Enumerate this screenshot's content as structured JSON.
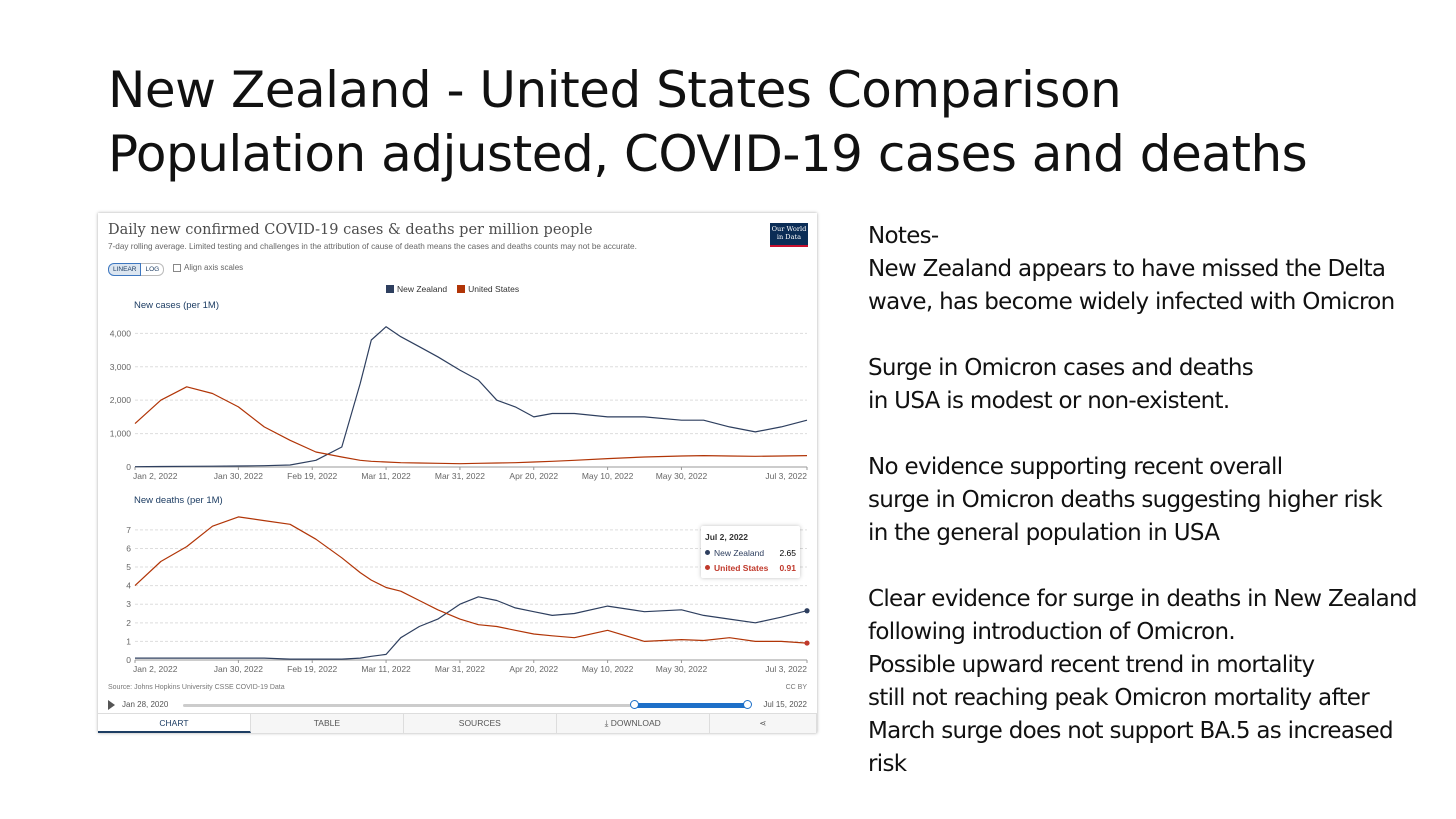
{
  "slide": {
    "title_line1": "New Zealand - United States Comparison",
    "title_line2": "Population adjusted, COVID-19 cases and deaths"
  },
  "panel": {
    "title": "Daily new confirmed COVID-19 cases & deaths per million people",
    "subtitle": "7-day rolling average. Limited testing and challenges in the attribution of cause of death means the cases and deaths counts may not be accurate.",
    "logo_line1": "Our World",
    "logo_line2": "in Data",
    "scale_linear": "LINEAR",
    "scale_log": "LOG",
    "align_label": "Align axis scales",
    "source": "Source: Johns Hopkins University CSSE COVID-19 Data",
    "license": "CC BY",
    "timeline_start": "Jan 28, 2020",
    "timeline_end": "Jul 15, 2022",
    "timeline_range_start_fraction": 0.8,
    "timeline_range_end_fraction": 1.0,
    "tabs": [
      "CHART",
      "TABLE",
      "SOURCES",
      "⤓ DOWNLOAD",
      "⋖"
    ],
    "tooltip": {
      "date": "Jul 2, 2022",
      "nz_label": "New Zealand",
      "nz_value": "2.65",
      "us_label": "United States",
      "us_value": "0.91"
    }
  },
  "colors": {
    "nz": "#2e3f5f",
    "us": "#b13507"
  },
  "chart_data": [
    {
      "type": "line",
      "title": "New cases (per 1M)",
      "x": [
        "2022-01-02",
        "2022-01-09",
        "2022-01-16",
        "2022-01-23",
        "2022-01-30",
        "2022-02-06",
        "2022-02-13",
        "2022-02-20",
        "2022-02-27",
        "2022-03-04",
        "2022-03-07",
        "2022-03-11",
        "2022-03-15",
        "2022-03-20",
        "2022-03-25",
        "2022-03-31",
        "2022-04-05",
        "2022-04-10",
        "2022-04-15",
        "2022-04-20",
        "2022-04-25",
        "2022-05-01",
        "2022-05-10",
        "2022-05-20",
        "2022-05-30",
        "2022-06-05",
        "2022-06-12",
        "2022-06-19",
        "2022-06-26",
        "2022-07-03"
      ],
      "series": [
        {
          "name": "New Zealand",
          "values": [
            10,
            15,
            20,
            25,
            30,
            40,
            60,
            200,
            600,
            2500,
            3800,
            4200,
            3900,
            3600,
            3300,
            2900,
            2600,
            2000,
            1800,
            1500,
            1600,
            1600,
            1500,
            1500,
            1400,
            1400,
            1200,
            1050,
            1200,
            1400
          ]
        },
        {
          "name": "United States",
          "values": [
            1300,
            2000,
            2400,
            2200,
            1800,
            1200,
            800,
            450,
            300,
            200,
            170,
            150,
            130,
            120,
            110,
            100,
            110,
            120,
            130,
            150,
            170,
            200,
            250,
            300,
            330,
            340,
            330,
            320,
            330,
            340
          ]
        }
      ],
      "x_ticks": [
        "Jan 2, 2022",
        "Jan 30, 2022",
        "Feb 19, 2022",
        "Mar 11, 2022",
        "Mar 31, 2022",
        "Apr 20, 2022",
        "May 10, 2022",
        "May 30, 2022",
        "Jul 3, 2022"
      ],
      "y_ticks": [
        "0",
        "1,000",
        "2,000",
        "3,000",
        "4,000"
      ],
      "ylim": [
        0,
        4400
      ],
      "grid": true
    },
    {
      "type": "line",
      "title": "New deaths (per 1M)",
      "x": [
        "2022-01-02",
        "2022-01-09",
        "2022-01-16",
        "2022-01-23",
        "2022-01-30",
        "2022-02-06",
        "2022-02-13",
        "2022-02-20",
        "2022-02-27",
        "2022-03-04",
        "2022-03-07",
        "2022-03-11",
        "2022-03-15",
        "2022-03-20",
        "2022-03-25",
        "2022-03-31",
        "2022-04-05",
        "2022-04-10",
        "2022-04-15",
        "2022-04-20",
        "2022-04-25",
        "2022-05-01",
        "2022-05-10",
        "2022-05-20",
        "2022-05-30",
        "2022-06-05",
        "2022-06-12",
        "2022-06-19",
        "2022-06-26",
        "2022-07-03"
      ],
      "series": [
        {
          "name": "New Zealand",
          "values": [
            0.1,
            0.1,
            0.1,
            0.1,
            0.1,
            0.1,
            0.05,
            0.05,
            0.05,
            0.1,
            0.2,
            0.3,
            1.2,
            1.8,
            2.2,
            3.0,
            3.4,
            3.2,
            2.8,
            2.6,
            2.4,
            2.5,
            2.9,
            2.6,
            2.7,
            2.4,
            2.2,
            2.0,
            2.3,
            2.65
          ]
        },
        {
          "name": "United States",
          "values": [
            4.0,
            5.3,
            6.1,
            7.2,
            7.7,
            7.5,
            7.3,
            6.5,
            5.5,
            4.7,
            4.3,
            3.9,
            3.7,
            3.2,
            2.7,
            2.2,
            1.9,
            1.8,
            1.6,
            1.4,
            1.3,
            1.2,
            1.6,
            1.0,
            1.1,
            1.05,
            1.2,
            1.0,
            1.0,
            0.91
          ]
        }
      ],
      "x_ticks": [
        "Jan 2, 2022",
        "Jan 30, 2022",
        "Feb 19, 2022",
        "Mar 11, 2022",
        "Mar 31, 2022",
        "Apr 20, 2022",
        "May 10, 2022",
        "May 30, 2022",
        "Jul 3, 2022"
      ],
      "y_ticks": [
        "0",
        "1",
        "2",
        "3",
        "4",
        "5",
        "6",
        "7"
      ],
      "ylim": [
        0,
        7.8
      ],
      "grid": true
    }
  ],
  "notes": [
    "Notes-",
    "New Zealand appears to have missed the Delta",
    "wave, has become widely infected with Omicron",
    "",
    "Surge in Omicron cases and deaths",
    "in USA is modest or non-existent.",
    "",
    "No evidence supporting recent overall",
    "surge in Omicron deaths suggesting higher risk",
    "in the general population in USA",
    "",
    "Clear evidence for surge in deaths in New Zealand",
    "following introduction of Omicron.",
    "Possible upward recent trend in mortality",
    "still not reaching peak Omicron mortality after",
    "March surge does not support BA.5 as increased",
    "risk"
  ]
}
